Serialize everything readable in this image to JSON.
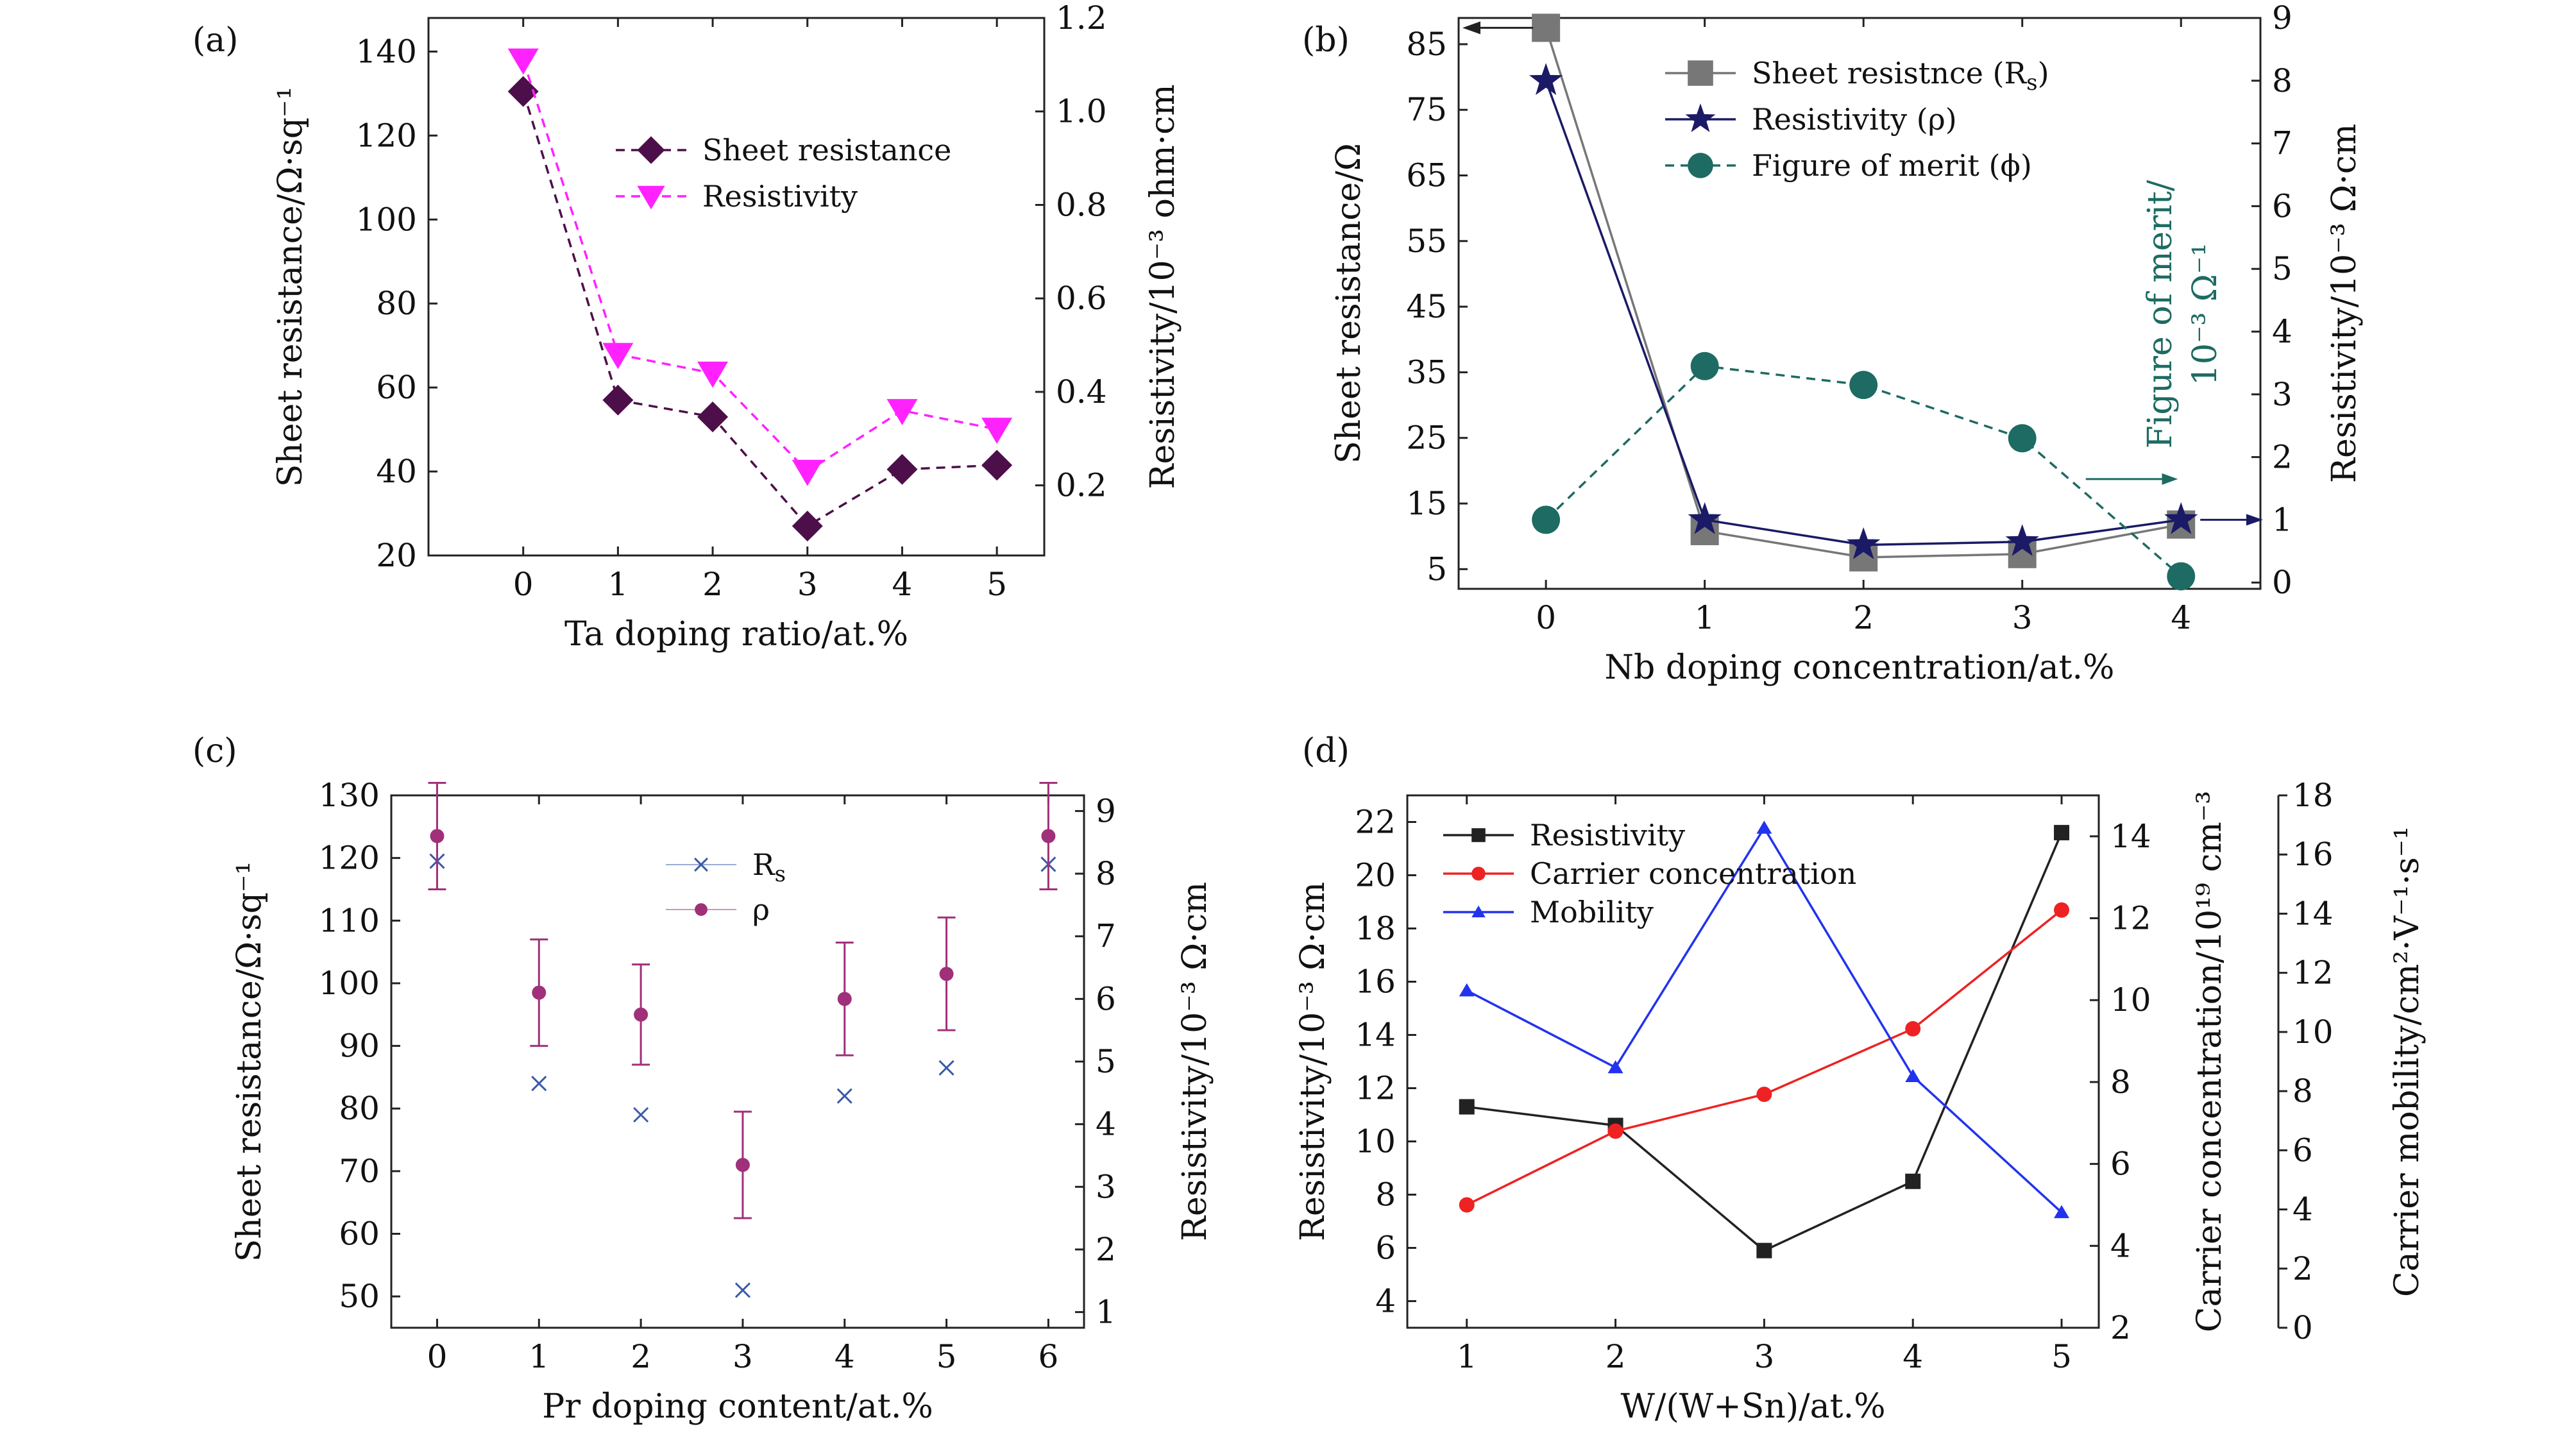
{
  "figure": {
    "panel_labels": [
      "(a)",
      "(b)",
      "(c)",
      "(d)"
    ]
  },
  "chart_data": [
    {
      "type": "line",
      "panel": "(a)",
      "xlabel": "Ta doping ratio/at.%",
      "ylabel": "Sheet resistance/Ω·sq⁻¹",
      "ylabel_right": "Resistivity/10⁻³ ohm·cm",
      "x": [
        0,
        1,
        2,
        3,
        4,
        5
      ],
      "xlim": [
        -1,
        5.5
      ],
      "xticks": [
        0,
        1,
        2,
        3,
        4,
        5
      ],
      "ylim": [
        20,
        148
      ],
      "yticks": [
        20,
        40,
        60,
        80,
        100,
        120,
        140
      ],
      "ylim_right": [
        0.05,
        1.2
      ],
      "yticks_right": [
        0.2,
        0.4,
        0.6,
        0.8,
        1.0,
        1.2
      ],
      "right_tick_labels": [
        "0.2",
        "0.4",
        "0.6",
        "0.8",
        "1.0",
        "1.2"
      ],
      "legend_position": "top-right",
      "series": [
        {
          "name": "Sheet resistance",
          "axis": "left",
          "color": "#4d0f4a",
          "line": "dashed",
          "marker": "diamond",
          "values": [
            130.5,
            57,
            53,
            27,
            40.5,
            41.5
          ]
        },
        {
          "name": "Resistivity",
          "axis": "right",
          "color": "#ff22ff",
          "line": "dashed",
          "marker": "triangle-down",
          "values": [
            1.11,
            0.48,
            0.44,
            0.23,
            0.36,
            0.32
          ]
        }
      ]
    },
    {
      "type": "line",
      "panel": "(b)",
      "xlabel": "Nb doping concentration/at.%",
      "ylabel": "Sheet resistance/Ω",
      "ylabel_right": "Resistivity/10⁻³ Ω·cm",
      "inner_label_lines": [
        "Figure of merit/",
        "10⁻³ Ω⁻¹"
      ],
      "x": [
        0,
        1,
        2,
        3,
        4
      ],
      "xlim": [
        -0.55,
        4.5
      ],
      "xticks": [
        0,
        1,
        2,
        3,
        4
      ],
      "ylim": [
        2,
        89
      ],
      "yticks": [
        5,
        15,
        25,
        35,
        45,
        55,
        65,
        75,
        85
      ],
      "ylim_right": [
        -0.1,
        9
      ],
      "yticks_right": [
        0,
        1,
        2,
        3,
        4,
        5,
        6,
        7,
        8,
        9
      ],
      "legend_position": "top-right",
      "series": [
        {
          "name": "Sheet resistnce (R",
          "name_sub": "s",
          "name_tail": ")",
          "axis": "left",
          "color": "#777777",
          "line": "solid",
          "marker": "square",
          "values": [
            87.5,
            10.8,
            6.8,
            7.3,
            11.8
          ]
        },
        {
          "name": "Resistivity (ρ)",
          "axis": "right",
          "color": "#1a1a66",
          "line": "solid",
          "marker": "star",
          "values": [
            8.0,
            1.0,
            0.6,
            0.65,
            1.0
          ]
        },
        {
          "name": "Figure of merit (ϕ)",
          "axis": "right",
          "color": "#1d6b63",
          "line": "dashed",
          "marker": "circle",
          "values": [
            1.0,
            3.45,
            3.15,
            2.3,
            0.1
          ]
        }
      ]
    },
    {
      "type": "scatter",
      "panel": "(c)",
      "xlabel": "Pr doping content/at.%",
      "ylabel": "Sheet resistance/Ω·sq⁻¹",
      "ylabel_right": "Resistivity/10⁻³ Ω·cm",
      "x": [
        0,
        1,
        2,
        3,
        4,
        5,
        6
      ],
      "xlim": [
        -0.45,
        6.35
      ],
      "xticks": [
        0,
        1,
        2,
        3,
        4,
        5,
        6
      ],
      "ylim": [
        45,
        130
      ],
      "yticks": [
        50,
        60,
        70,
        80,
        90,
        100,
        110,
        120,
        130
      ],
      "ylim_right": [
        0.75,
        9.25
      ],
      "yticks_right": [
        1,
        2,
        3,
        4,
        5,
        6,
        7,
        8,
        9
      ],
      "legend_position": "top-center",
      "series": [
        {
          "name": "R",
          "name_sub": "s",
          "axis": "left",
          "color": "#3a5aa8",
          "marker": "x",
          "values": [
            119.5,
            84,
            79,
            51,
            82,
            86.5,
            119
          ]
        },
        {
          "name": "ρ",
          "axis": "right",
          "color": "#a0307a",
          "marker": "circle",
          "values": [
            8.6,
            6.1,
            5.75,
            3.35,
            6.0,
            6.4,
            8.6
          ],
          "error": [
            0.85,
            0.85,
            0.8,
            0.85,
            0.9,
            0.9,
            0.85
          ]
        }
      ]
    },
    {
      "type": "line",
      "panel": "(d)",
      "xlabel": "W/(W+Sn)/at.%",
      "ylabel": "Resistivity/10⁻³ Ω·cm",
      "ylabel_right": "Carrier concentration/10¹⁹ cm⁻³",
      "ylabel_right2": "Carrier mobility/cm²·V⁻¹·s⁻¹",
      "x": [
        1,
        2,
        3,
        4,
        5
      ],
      "xlim": [
        0.6,
        5.25
      ],
      "xticks": [
        1,
        2,
        3,
        4,
        5
      ],
      "ylim": [
        3,
        23
      ],
      "yticks": [
        4,
        6,
        8,
        10,
        12,
        14,
        16,
        18,
        20,
        22
      ],
      "ylim_right": [
        2,
        15
      ],
      "yticks_right": [
        2,
        4,
        6,
        8,
        10,
        12,
        14
      ],
      "ylim_right2": [
        0,
        18
      ],
      "yticks_right2": [
        0,
        2,
        4,
        6,
        8,
        10,
        12,
        14,
        16,
        18
      ],
      "legend_position": "top-left",
      "series": [
        {
          "name": "Resistivity",
          "axis": "left",
          "color": "#222222",
          "line": "solid",
          "marker": "square",
          "values": [
            11.3,
            10.6,
            5.9,
            8.5,
            21.6
          ]
        },
        {
          "name": "Carrier concentration",
          "axis": "right",
          "color": "#ee2222",
          "line": "solid",
          "marker": "circle",
          "values": [
            5.0,
            6.8,
            7.7,
            9.3,
            12.2
          ]
        },
        {
          "name": "Mobility",
          "axis": "right2",
          "color": "#2233ee",
          "line": "solid",
          "marker": "triangle",
          "values": [
            11.4,
            8.8,
            16.9,
            8.5,
            3.9
          ]
        }
      ]
    }
  ]
}
